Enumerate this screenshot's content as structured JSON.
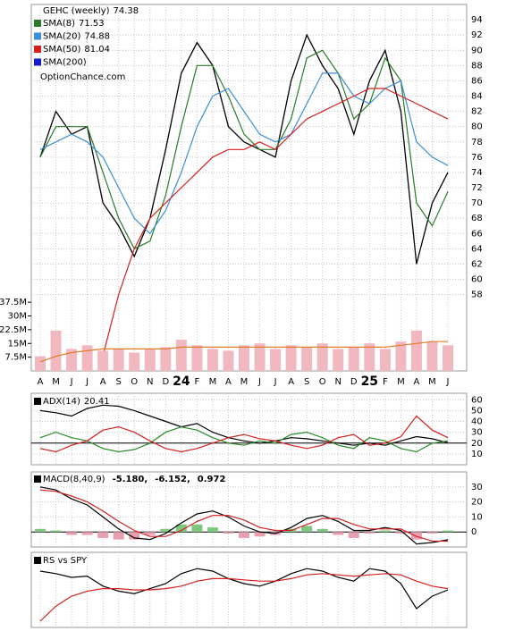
{
  "chart_data": [
    {
      "type": "line",
      "title": "GEHC (weekly)",
      "last": 74.38,
      "watermark": "OptionChance.com",
      "categories": [
        "A",
        "M",
        "J",
        "J",
        "A",
        "S",
        "O",
        "N",
        "D",
        "24",
        "F",
        "M",
        "A",
        "M",
        "J",
        "J",
        "A",
        "S",
        "O",
        "N",
        "D",
        "25",
        "F",
        "M",
        "A",
        "M",
        "J"
      ],
      "color": "#000000",
      "values": [
        76,
        82,
        79,
        80,
        70,
        67,
        63,
        68,
        77,
        87,
        91,
        88,
        80,
        78,
        77,
        76,
        86,
        92,
        88,
        85,
        79,
        86,
        90,
        82,
        62,
        70,
        74
      ],
      "series": [
        {
          "name": "SMA(8)",
          "last": 71.53,
          "color": "#2a7a2a",
          "values": [
            76,
            80,
            80,
            80,
            74,
            68,
            64,
            65,
            71,
            80,
            88,
            88,
            84,
            79,
            77,
            77,
            81,
            89,
            90,
            87,
            81,
            83,
            89,
            86,
            70,
            67,
            71.5
          ]
        },
        {
          "name": "SMA(20)",
          "last": 74.88,
          "color": "#3a8fd6",
          "values": [
            77,
            78,
            79,
            78,
            76,
            72,
            68,
            66,
            69,
            74,
            80,
            84,
            85,
            82,
            79,
            78,
            79,
            83,
            87,
            87,
            84,
            83,
            85,
            86,
            78,
            76,
            74.9
          ]
        },
        {
          "name": "SMA(50)",
          "last": 81.04,
          "color": "#d42020",
          "values": [
            null,
            null,
            null,
            null,
            50,
            58,
            64,
            68,
            70,
            72,
            74,
            76,
            77,
            77,
            78,
            77,
            79,
            81,
            82,
            83,
            84,
            85,
            85,
            84,
            83,
            82,
            81
          ]
        },
        {
          "name": "SMA(200)",
          "color": "#1a1acc"
        }
      ],
      "ylim": [
        48,
        96
      ],
      "yticks": [
        58,
        60,
        62,
        64,
        66,
        68,
        70,
        72,
        74,
        76,
        78,
        80,
        82,
        84,
        86,
        88,
        90,
        92,
        94
      ],
      "grid": true
    },
    {
      "type": "bar",
      "color": "#f2b8c0",
      "values": [
        8,
        22,
        12,
        14,
        11,
        12,
        10,
        12,
        13,
        17,
        14,
        12,
        11,
        14,
        15,
        12,
        14,
        13,
        15,
        12,
        13,
        15,
        12,
        16,
        22,
        16,
        14
      ],
      "series": [
        {
          "color": "#e07b2a",
          "values": [
            5,
            8,
            10,
            11,
            12,
            12,
            12,
            12,
            12,
            13,
            13,
            13,
            13,
            13,
            13,
            13,
            13,
            13,
            13,
            13,
            13,
            13,
            13,
            14,
            15,
            16,
            16
          ]
        }
      ],
      "ylim": [
        0,
        200
      ],
      "yticks": [
        {
          "value": 7.5,
          "label": "7.5M"
        },
        {
          "value": 15,
          "label": "15M"
        },
        {
          "value": 22.5,
          "label": "22.5M"
        },
        {
          "value": 30,
          "label": "30M"
        },
        {
          "value": 37.5,
          "label": "37.5M"
        }
      ]
    },
    {
      "type": "line",
      "title": "ADX(14)",
      "last": 20.41,
      "refline": 20,
      "series": [
        {
          "color": "#000000",
          "values": [
            50,
            48,
            45,
            52,
            55,
            54,
            50,
            45,
            40,
            35,
            38,
            30,
            25,
            22,
            20,
            22,
            25,
            24,
            22,
            20,
            18,
            20,
            18,
            22,
            26,
            24,
            20.4
          ]
        },
        {
          "color": "#2a8a2a",
          "values": [
            25,
            30,
            25,
            22,
            15,
            12,
            14,
            20,
            30,
            35,
            32,
            25,
            20,
            18,
            22,
            20,
            28,
            30,
            25,
            18,
            15,
            25,
            22,
            15,
            12,
            20,
            22
          ]
        },
        {
          "color": "#d42020",
          "values": [
            15,
            12,
            18,
            22,
            32,
            35,
            30,
            22,
            15,
            12,
            15,
            20,
            25,
            28,
            24,
            22,
            18,
            15,
            18,
            25,
            28,
            18,
            20,
            26,
            45,
            32,
            25
          ]
        }
      ],
      "ylim": [
        0,
        66
      ],
      "yticks": [
        10,
        20,
        30,
        40,
        50,
        60
      ],
      "grid": true
    },
    {
      "type": "line",
      "title": "MACD(8,40,9)",
      "refline": 0,
      "series": [
        {
          "color": "#000000",
          "last": {
            "value": -5.18,
            "label": "-5.180,"
          },
          "values": [
            30,
            28,
            22,
            18,
            10,
            2,
            -4,
            -5,
            -1,
            6,
            12,
            14,
            10,
            4,
            0,
            -1,
            3,
            9,
            11,
            7,
            1,
            1,
            3,
            1,
            -8,
            -7,
            -5.18
          ]
        },
        {
          "color": "#d42020",
          "last": {
            "value": -6.152,
            "label": "-6.152,"
          },
          "values": [
            28,
            27,
            24,
            20,
            14,
            7,
            1,
            -3,
            -3,
            1,
            7,
            11,
            11,
            8,
            3,
            1,
            1,
            5,
            9,
            9,
            5,
            2,
            2,
            2,
            -3,
            -6,
            -6.152
          ]
        }
      ],
      "histogram": {
        "color": "#2255aa",
        "last": 0.972,
        "up_color": "#7fc77f",
        "down_color": "#e8a0b0",
        "values": [
          2,
          1,
          -2,
          -2,
          -4,
          -5,
          -5,
          -2,
          2,
          5,
          5,
          3,
          -1,
          -4,
          -3,
          -2,
          2,
          4,
          2,
          -2,
          -4,
          -1,
          1,
          -1,
          -5,
          -1,
          0.972
        ]
      },
      "ylim": [
        -10,
        40
      ],
      "yticks": [
        0,
        10,
        20,
        30
      ],
      "grid": true
    },
    {
      "type": "line",
      "title": "RS vs SPY",
      "series": [
        {
          "color": "#000000",
          "values": [
            60,
            58,
            55,
            56,
            48,
            44,
            42,
            46,
            50,
            58,
            62,
            60,
            54,
            50,
            48,
            52,
            58,
            62,
            60,
            55,
            52,
            62,
            60,
            50,
            30,
            40,
            45
          ]
        },
        {
          "color": "#d42020",
          "values": [
            20,
            32,
            40,
            44,
            46,
            46,
            45,
            45,
            46,
            48,
            52,
            54,
            54,
            53,
            52,
            52,
            54,
            57,
            58,
            57,
            56,
            57,
            58,
            57,
            52,
            48,
            46
          ]
        }
      ],
      "ylim": [
        15,
        75
      ],
      "grid": true
    }
  ]
}
